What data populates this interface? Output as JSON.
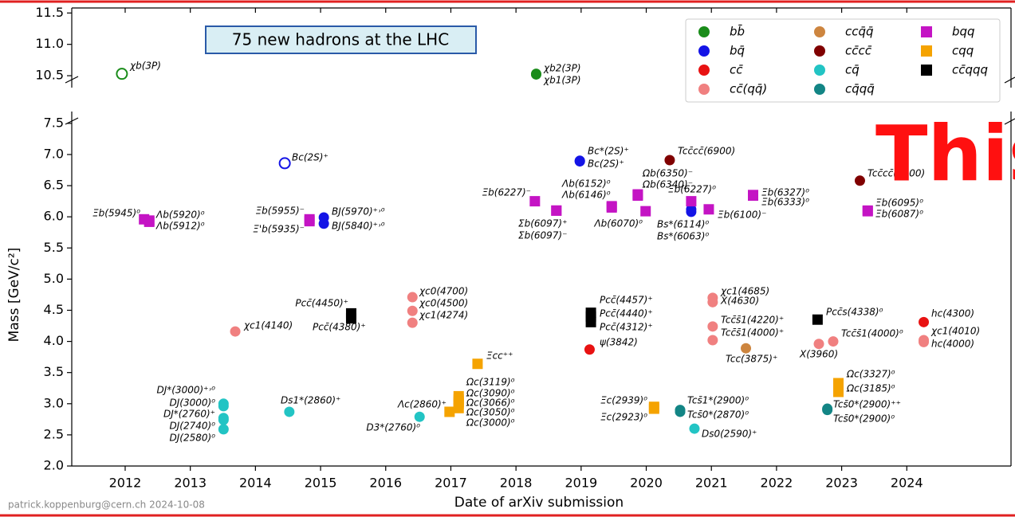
{
  "chart_data": {
    "type": "scatter",
    "title": "75 new hadrons at the LHC",
    "watermark": "This",
    "footer": "patrick.koppenburg@cern.ch 2024-10-08",
    "xlabel": "Date of arXiv submission",
    "ylabel": "Mass [GeV/c²]",
    "xlim": [
      2011.18,
      2025.6
    ],
    "xticks": [
      2012,
      2013,
      2014,
      2015,
      2016,
      2017,
      2018,
      2019,
      2020,
      2021,
      2022,
      2023,
      2024
    ],
    "ylim": [
      2.0,
      7.69
    ],
    "yticks": [
      {
        "value": 2,
        "label": "2.0"
      },
      2.5,
      {
        "value": 3,
        "label": "3.0"
      },
      3.5,
      {
        "value": 4,
        "label": "4.0"
      },
      4.5,
      {
        "value": 5,
        "label": "5.0"
      },
      5.5,
      {
        "value": 6,
        "label": "6.0"
      },
      6.5,
      {
        "value": 7,
        "label": "7.0"
      },
      7.5
    ],
    "upper_ylim": [
      10.31,
      11.58
    ],
    "upper_yticks": [
      10.5,
      {
        "value": 11,
        "label": "11.0"
      },
      11.5
    ],
    "legend": "upper right",
    "series": [
      {
        "name": "bb̄",
        "color": "#1a8c1a",
        "marker": "circle",
        "x": [
          2011.95,
          2018.31,
          2018.31
        ],
        "values": [
          10.53,
          10.53,
          10.52
        ],
        "labels": [
          "χb(3P)",
          "χb2(3P)",
          "χb1(3P)"
        ],
        "hollow": [
          true,
          false,
          false
        ]
      },
      {
        "name": "bq̄",
        "color": "#1414e6",
        "marker": "circle",
        "x": [
          2014.45,
          2015.05,
          2015.05,
          2018.98,
          2018.98,
          2020.69,
          2020.69
        ],
        "values": [
          6.86,
          5.99,
          5.89,
          6.9,
          6.89,
          6.12,
          6.08
        ],
        "labels": [
          "Bc(2S)⁺",
          "BJ(5970)⁺˒⁰",
          "BJ(5840)⁺˒⁰",
          "Bc*(2S)⁺",
          "Bc(2S)⁺",
          "Bs*(6114)⁰",
          "Bs*(6063)⁰"
        ],
        "hollow": [
          true,
          false,
          false,
          false,
          false,
          false,
          false
        ]
      },
      {
        "name": "cc̄",
        "color": "#e81212",
        "marker": "circle",
        "x": [
          2019.13,
          2024.26
        ],
        "values": [
          3.87,
          4.31
        ],
        "labels": [
          "ψ(3842)",
          "hc(4300)"
        ]
      },
      {
        "name": "cc̄(qq̄)",
        "color": "#f08080",
        "marker": "circle",
        "x": [
          2013.69,
          2016.41,
          2016.41,
          2016.41,
          2021.02,
          2021.02,
          2021.02,
          2021.02,
          2022.87,
          2022.65,
          2024.26,
          2024.26
        ],
        "values": [
          4.16,
          4.71,
          4.49,
          4.3,
          4.7,
          4.63,
          4.24,
          4.02,
          4.0,
          3.96,
          4.02,
          3.99
        ],
        "labels": [
          "χc1(4140)",
          "χc0(4700)",
          "χc0(4500)",
          "χc1(4274)",
          "χc1(4685)",
          "X(4630)",
          "Tcc̄s̄1(4220)⁺",
          "Tcc̄s̄1(4000)⁺",
          "Tcc̄s̄1(4000)⁰",
          "X(3960)",
          "χc1(4010)",
          "hc(4000)"
        ]
      },
      {
        "name": "ccq̄q̄",
        "color": "#cd853f",
        "marker": "circle",
        "x": [
          2021.53
        ],
        "values": [
          3.89
        ],
        "labels": [
          "Tcc(3875)⁺"
        ]
      },
      {
        "name": "cc̄cc̄",
        "color": "#800000",
        "marker": "circle",
        "x": [
          2020.36,
          2023.28
        ],
        "values": [
          6.91,
          6.58
        ],
        "labels": [
          "Tcc̄cc̄(6900)",
          "Tcc̄cc̄(6600)"
        ]
      },
      {
        "name": "cq̄",
        "color": "#22c4c4",
        "marker": "circle",
        "x": [
          2013.51,
          2013.51,
          2013.51,
          2013.51,
          2013.51,
          2014.52,
          2016.52,
          2020.74
        ],
        "values": [
          3.0,
          2.96,
          2.77,
          2.74,
          2.59,
          2.87,
          2.79,
          2.6
        ],
        "labels": [
          "DJ*(3000)⁺˒⁰",
          "DJ(3000)⁰",
          "DJ*(2760)⁺",
          "DJ(2740)⁰",
          "DJ(2580)⁰",
          "Ds1*(2860)⁺",
          "D3*(2760)⁰",
          "Ds0(2590)⁺"
        ]
      },
      {
        "name": "cq̄qq̄",
        "color": "#138585",
        "marker": "circle",
        "x": [
          2020.52,
          2020.52,
          2022.78,
          2022.78
        ],
        "values": [
          2.9,
          2.87,
          2.92,
          2.9
        ],
        "labels": [
          "Tcs̄1*(2900)⁰",
          "Tcs̄0*(2870)⁰",
          "Tcs̄0*(2900)⁺⁺",
          "Tcs̄0*(2900)⁰"
        ]
      },
      {
        "name": "bqq",
        "color": "#c414c4",
        "marker": "square",
        "x": [
          2012.29,
          2012.37,
          2012.37,
          2014.83,
          2014.83,
          2018.29,
          2018.62,
          2018.62,
          2019.47,
          2019.47,
          2019.87,
          2019.87,
          2019.99,
          2020.69,
          2020.96,
          2021.64,
          2021.64,
          2023.4,
          2023.4
        ],
        "values": [
          5.96,
          5.94,
          5.92,
          5.96,
          5.93,
          6.25,
          6.1,
          6.1,
          6.17,
          6.15,
          6.36,
          6.34,
          6.09,
          6.25,
          6.12,
          6.35,
          6.34,
          6.1,
          6.09
        ],
        "labels": [
          "Ξb(5945)⁰",
          "Λb(5920)⁰",
          "Λb(5912)⁰",
          "Ξb(5955)⁻",
          "Ξ'b(5935)⁻",
          "Ξb(6227)⁻",
          "Σb(6097)⁺",
          "Σb(6097)⁻",
          "Λb(6152)⁰",
          "Λb(6146)⁰",
          "Ωb(6350)⁻",
          "Ωb(6340)⁻",
          "Λb(6070)⁰",
          "Ξb(6227)⁰",
          "Ξb(6100)⁻",
          "Ξb(6327)⁰",
          "Ξb(6333)⁰",
          "Ξb(6095)⁰",
          "Ξb(6087)⁰"
        ]
      },
      {
        "name": "cqq",
        "color": "#f5a300",
        "marker": "square",
        "x": [
          2016.98,
          2017.41,
          2017.12,
          2017.12,
          2017.12,
          2017.12,
          2017.12,
          2020.12,
          2020.12,
          2022.95,
          2022.95
        ],
        "values": [
          2.87,
          3.64,
          3.12,
          3.07,
          3.03,
          3.0,
          2.93,
          2.95,
          2.92,
          3.33,
          3.19
        ],
        "labels": [
          "Λc(2860)⁺",
          "Ξcc⁺⁺",
          "Ωc(3119)⁰",
          "Ωc(3090)⁰",
          "Ωc(3066)⁰",
          "Ωc(3050)⁰",
          "Ωc(3000)⁰",
          "Ξc(2939)⁰",
          "Ξc(2923)⁰",
          "Ωc(3327)⁰",
          "Ωc(3185)⁰"
        ]
      },
      {
        "name": "cc̄qqq",
        "color": "#000000",
        "marker": "square",
        "x": [
          2015.47,
          2015.47,
          2019.15,
          2019.15,
          2019.15,
          2022.63
        ],
        "values": [
          4.45,
          4.37,
          4.46,
          4.4,
          4.31,
          4.35
        ],
        "labels": [
          "Pcc̄(4450)⁺",
          "Pcc̄(4380)⁺",
          "Pcc̄(4457)⁺",
          "Pcc̄(4440)⁺",
          "Pcc̄(4312)⁺",
          "Pcc̄s(4338)⁰"
        ]
      }
    ]
  }
}
